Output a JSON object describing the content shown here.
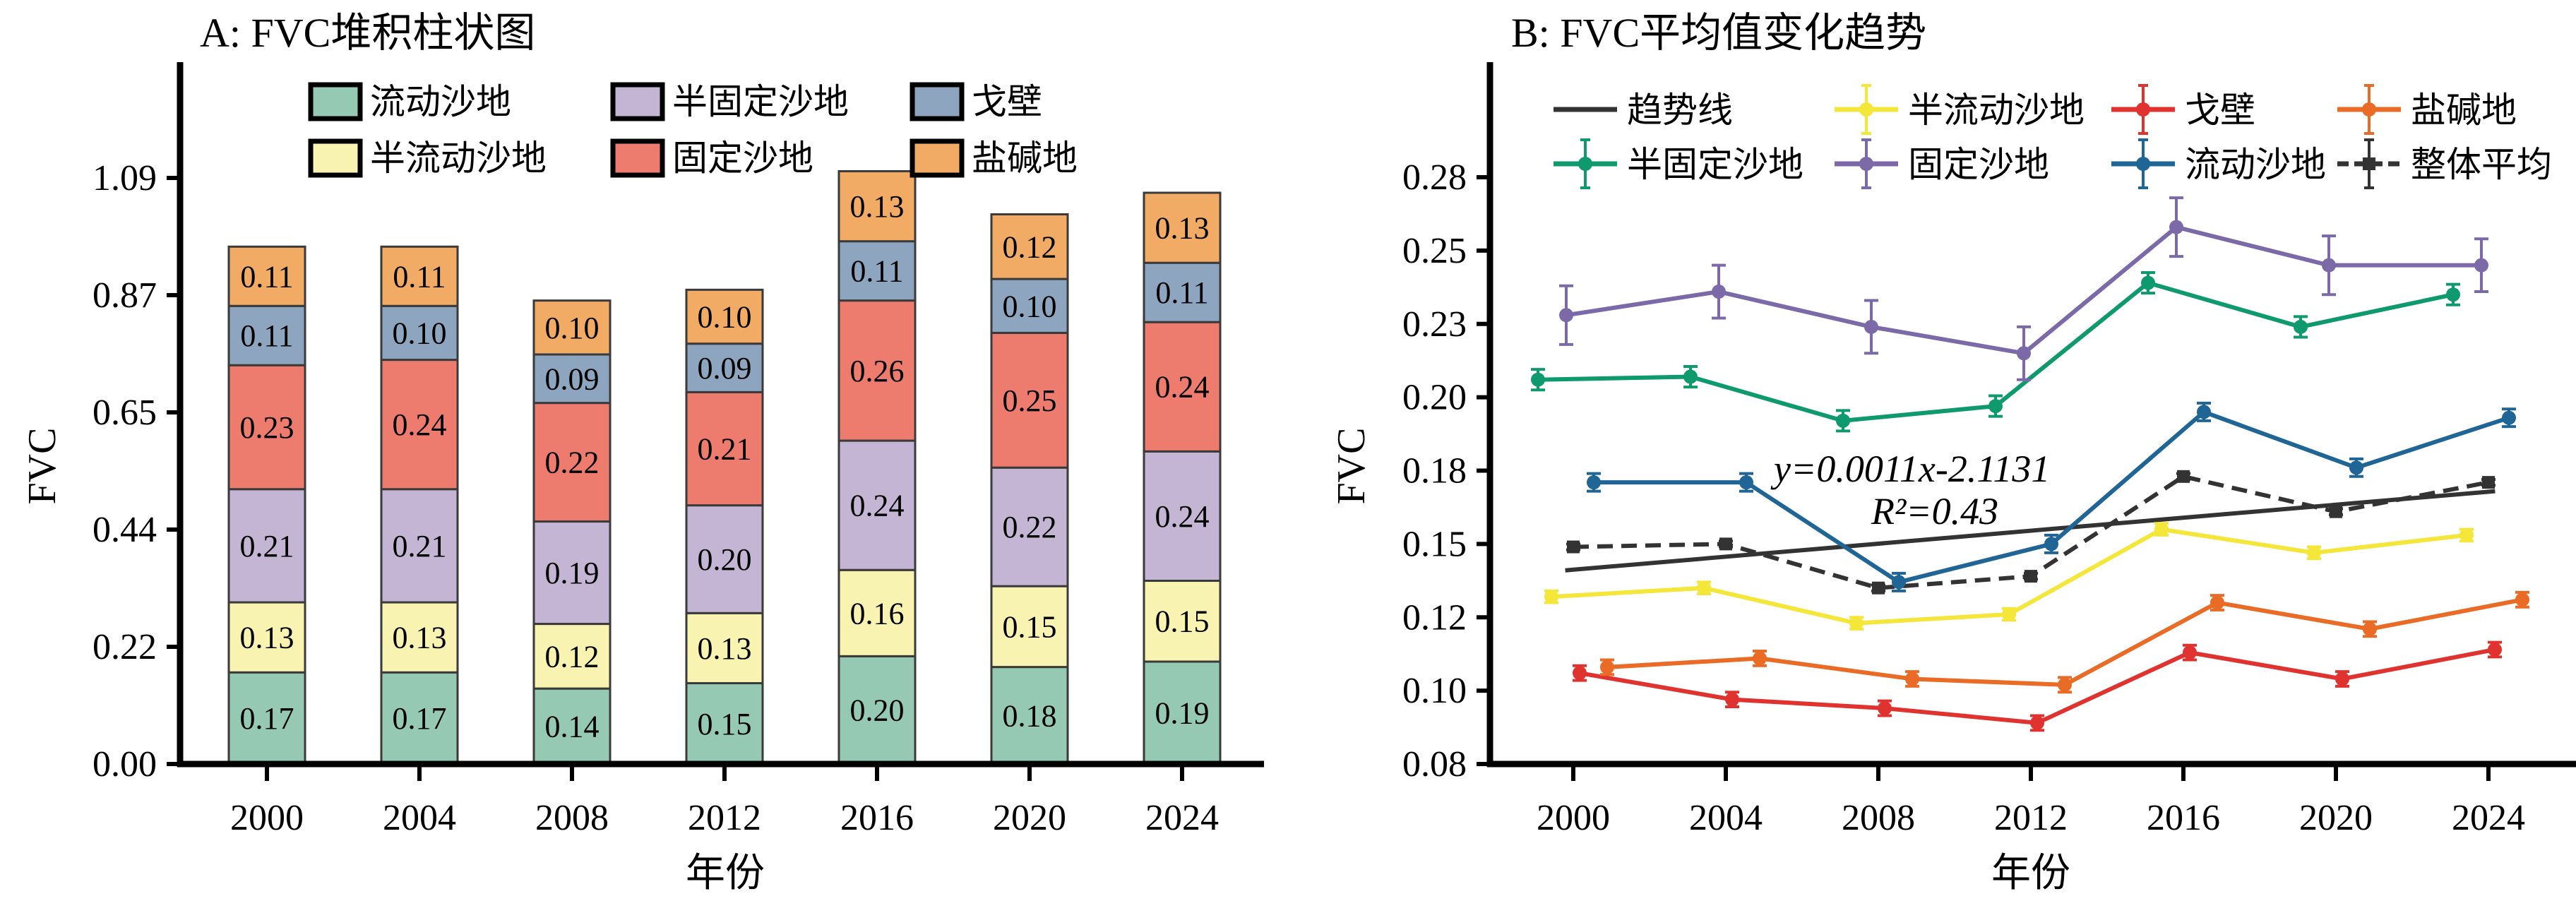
{
  "chart_data": [
    {
      "id": "A",
      "type": "bar",
      "stacked": true,
      "title": "A: FVC堆积柱状图",
      "xlabel": "年份",
      "ylabel": "FVC",
      "categories": [
        "2000",
        "2004",
        "2008",
        "2012",
        "2016",
        "2020",
        "2024"
      ],
      "ylim": [
        0,
        1.3
      ],
      "yticks": [
        0.0,
        0.2175,
        0.435,
        0.6525,
        0.87,
        1.0875
      ],
      "ytick_labels": [
        "0.00",
        "0.22",
        "0.44",
        "0.65",
        "0.87",
        "1.09"
      ],
      "legend_position": "top",
      "series": [
        {
          "name": "流动沙地",
          "color": "#95c9b3",
          "values": [
            0.17,
            0.17,
            0.14,
            0.15,
            0.2,
            0.18,
            0.19
          ]
        },
        {
          "name": "半流动沙地",
          "color": "#f8f3b0",
          "values": [
            0.13,
            0.13,
            0.12,
            0.13,
            0.16,
            0.15,
            0.15
          ]
        },
        {
          "name": "半固定沙地",
          "color": "#c3b5d3",
          "values": [
            0.21,
            0.21,
            0.19,
            0.2,
            0.24,
            0.22,
            0.24
          ]
        },
        {
          "name": "固定沙地",
          "color": "#ed7b6e",
          "values": [
            0.23,
            0.24,
            0.22,
            0.21,
            0.26,
            0.25,
            0.24
          ]
        },
        {
          "name": "戈壁",
          "color": "#8da5bf",
          "values": [
            0.11,
            0.1,
            0.09,
            0.09,
            0.11,
            0.1,
            0.11
          ]
        },
        {
          "name": "盐碱地",
          "color": "#f2ab65",
          "values": [
            0.11,
            0.11,
            0.1,
            0.1,
            0.13,
            0.12,
            0.13
          ]
        }
      ],
      "legend_order": [
        "流动沙地",
        "半固定沙地",
        "戈壁",
        "半流动沙地",
        "固定沙地",
        "盐碱地"
      ],
      "data_labels": true
    },
    {
      "id": "B",
      "type": "line",
      "title": "B: FVC平均值变化趋势",
      "xlabel": "年份",
      "ylabel": "FVC",
      "x": [
        2000,
        2004,
        2008,
        2012,
        2016,
        2020,
        2024
      ],
      "xtick_labels": [
        "2000",
        "2004",
        "2008",
        "2012",
        "2016",
        "2020",
        "2024"
      ],
      "ylim": [
        0.075,
        0.2875
      ],
      "yticks": [
        0.075,
        0.1,
        0.125,
        0.15,
        0.175,
        0.2,
        0.225,
        0.25,
        0.275
      ],
      "ytick_labels": [
        "0.08",
        "0.10",
        "0.12",
        "0.15",
        "0.18",
        "0.20",
        "0.23",
        "0.25",
        "0.28"
      ],
      "legend_position": "top",
      "legend_order": [
        "趋势线",
        "半流动沙地",
        "戈壁",
        "盐碱地",
        "半固定沙地",
        "固定沙地",
        "流动沙地",
        "整体平均"
      ],
      "series": [
        {
          "name": "半固定沙地",
          "color": "#0f9a6e",
          "dx": -1.0,
          "marker": "circle",
          "dashed": false,
          "values": [
            0.206,
            0.207,
            0.192,
            0.197,
            0.239,
            0.224,
            0.235
          ],
          "errors": [
            0.0035,
            0.0035,
            0.0035,
            0.0035,
            0.0035,
            0.0035,
            0.0035
          ]
        },
        {
          "name": "半流动沙地",
          "color": "#f5e63a",
          "dx": -0.62,
          "marker": "circle",
          "dashed": false,
          "values": [
            0.132,
            0.135,
            0.123,
            0.126,
            0.155,
            0.147,
            0.153
          ],
          "errors": [
            0.002,
            0.002,
            0.002,
            0.002,
            0.002,
            0.002,
            0.002
          ]
        },
        {
          "name": "固定沙地",
          "color": "#7c6aa8",
          "dx": -0.2,
          "marker": "circle",
          "dashed": false,
          "values": [
            0.228,
            0.236,
            0.224,
            0.215,
            0.258,
            0.245,
            0.245
          ],
          "errors": [
            0.01,
            0.009,
            0.009,
            0.009,
            0.01,
            0.01,
            0.009
          ]
        },
        {
          "name": "整体平均",
          "color": "#333333",
          "dx": 0.0,
          "marker": "square",
          "dashed": true,
          "values": [
            0.149,
            0.15,
            0.135,
            0.139,
            0.173,
            0.161,
            0.171
          ],
          "errors": [
            0.001,
            0.001,
            0.001,
            0.001,
            0.001,
            0.001,
            0.001
          ]
        },
        {
          "name": "戈壁",
          "color": "#e0332f",
          "dx": 0.18,
          "marker": "circle",
          "dashed": false,
          "values": [
            0.106,
            0.097,
            0.094,
            0.089,
            0.113,
            0.104,
            0.114
          ],
          "errors": [
            0.0025,
            0.0025,
            0.0025,
            0.0025,
            0.0025,
            0.0025,
            0.0025
          ]
        },
        {
          "name": "流动沙地",
          "color": "#1f6596",
          "dx": 0.58,
          "marker": "circle",
          "dashed": false,
          "values": [
            0.171,
            0.171,
            0.137,
            0.15,
            0.195,
            0.176,
            0.193
          ],
          "errors": [
            0.003,
            0.003,
            0.003,
            0.003,
            0.003,
            0.003,
            0.003
          ]
        },
        {
          "name": "盐碱地",
          "color": "#ea6b25",
          "dx": 0.96,
          "marker": "circle",
          "dashed": false,
          "values": [
            0.108,
            0.111,
            0.104,
            0.102,
            0.13,
            0.121,
            0.131
          ],
          "errors": [
            0.0025,
            0.0025,
            0.0025,
            0.0025,
            0.0025,
            0.0025,
            0.0025
          ]
        }
      ],
      "trendline": {
        "name": "趋势线",
        "color": "#333333",
        "slope": 0.0011,
        "intercept": -2.1131,
        "x_range": [
          1999.9,
          2024.1
        ],
        "y_range": [
          0.141,
          0.168
        ]
      },
      "annotations": {
        "equation": "y=0.0011x-2.1131",
        "r_squared": "R²=0.43"
      }
    }
  ]
}
